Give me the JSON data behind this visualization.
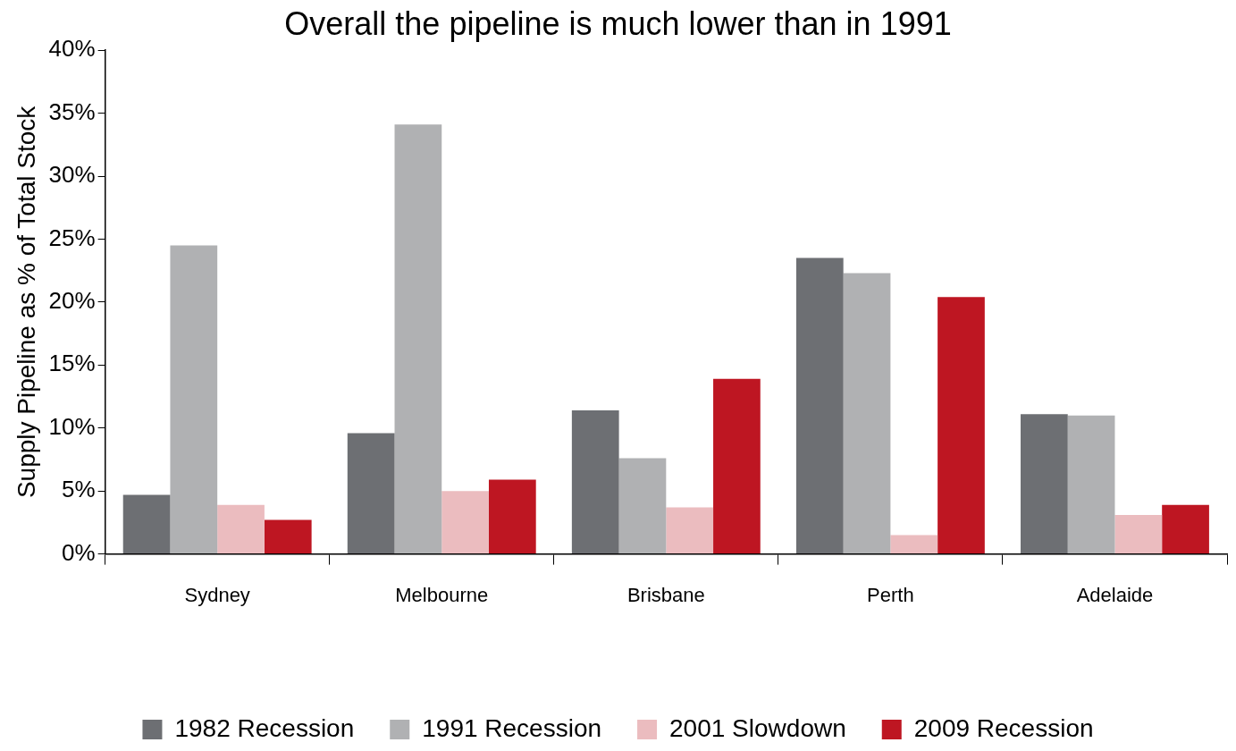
{
  "chart_data": {
    "type": "bar",
    "title": "Overall the pipeline is much lower than in 1991",
    "ylabel": "Supply Pipeline as % of Total Stock",
    "categories": [
      "Sydney",
      "Melbourne",
      "Brisbane",
      "Perth",
      "Adelaide"
    ],
    "series": [
      {
        "name": "1982 Recession",
        "color": "#6d6f73",
        "values": [
          4.7,
          9.6,
          11.4,
          23.5,
          11.1
        ]
      },
      {
        "name": "1991 Recession",
        "color": "#b0b1b3",
        "values": [
          24.5,
          34.1,
          7.6,
          22.3,
          11.0
        ]
      },
      {
        "name": "2001 Slowdown",
        "color": "#ebbcbf",
        "values": [
          3.9,
          5.0,
          3.7,
          1.5,
          3.1
        ]
      },
      {
        "name": "2009 Recession",
        "color": "#be1622",
        "values": [
          2.7,
          5.9,
          13.9,
          20.4,
          3.9
        ]
      }
    ],
    "ylim": [
      0,
      40
    ],
    "yticks": [
      {
        "value": 0,
        "label": "0%"
      },
      {
        "value": 5,
        "label": "5%"
      },
      {
        "value": 10,
        "label": "10%"
      },
      {
        "value": 15,
        "label": "15%"
      },
      {
        "value": 20,
        "label": "20%"
      },
      {
        "value": 25,
        "label": "25%"
      },
      {
        "value": 30,
        "label": "30%"
      },
      {
        "value": 35,
        "label": "35%"
      },
      {
        "value": 40,
        "label": "40%"
      }
    ],
    "grid": false,
    "legend": "bottom"
  }
}
